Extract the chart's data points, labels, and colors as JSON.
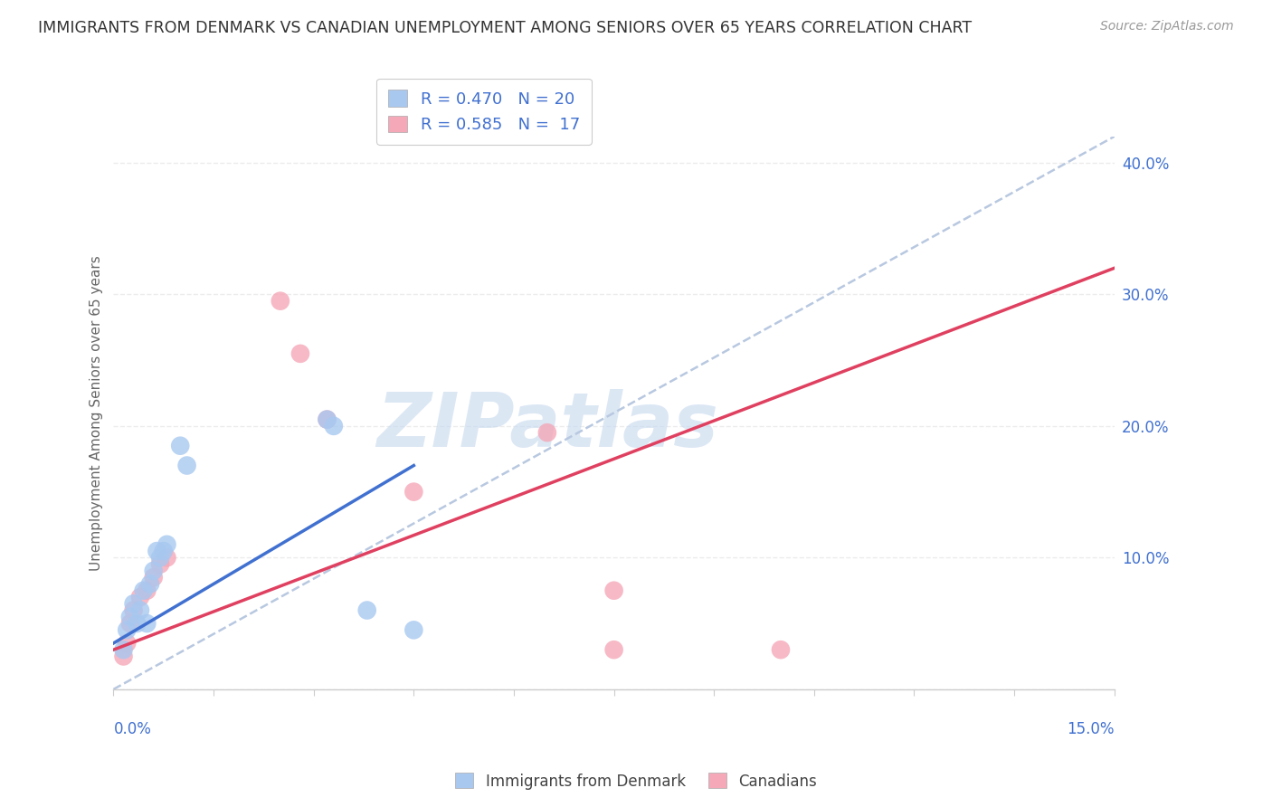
{
  "title": "IMMIGRANTS FROM DENMARK VS CANADIAN UNEMPLOYMENT AMONG SENIORS OVER 65 YEARS CORRELATION CHART",
  "source": "Source: ZipAtlas.com",
  "ylabel": "Unemployment Among Seniors over 65 years",
  "xlim": [
    0,
    15
  ],
  "ylim": [
    0,
    42
  ],
  "legend_entry1": "R = 0.470   N = 20",
  "legend_entry2": "R = 0.585   N =  17",
  "legend_label1": "Immigrants from Denmark",
  "legend_label2": "Canadians",
  "blue_color": "#A8C8F0",
  "pink_color": "#F5A8B8",
  "blue_line_color": "#4070D0",
  "pink_line_color": "#E04060",
  "dash_color": "#B8C8E0",
  "blue_scatter": [
    [
      0.15,
      3.0
    ],
    [
      0.2,
      4.5
    ],
    [
      0.25,
      5.5
    ],
    [
      0.3,
      6.5
    ],
    [
      0.35,
      5.0
    ],
    [
      0.4,
      6.0
    ],
    [
      0.45,
      7.5
    ],
    [
      0.5,
      5.0
    ],
    [
      0.55,
      8.0
    ],
    [
      0.6,
      9.0
    ],
    [
      0.65,
      10.5
    ],
    [
      0.7,
      10.0
    ],
    [
      0.75,
      10.5
    ],
    [
      0.8,
      11.0
    ],
    [
      1.0,
      18.5
    ],
    [
      1.1,
      17.0
    ],
    [
      3.2,
      20.5
    ],
    [
      3.3,
      20.0
    ],
    [
      3.8,
      6.0
    ],
    [
      4.5,
      4.5
    ]
  ],
  "pink_scatter": [
    [
      0.15,
      2.5
    ],
    [
      0.2,
      3.5
    ],
    [
      0.25,
      5.0
    ],
    [
      0.3,
      6.0
    ],
    [
      0.4,
      7.0
    ],
    [
      0.5,
      7.5
    ],
    [
      0.6,
      8.5
    ],
    [
      0.7,
      9.5
    ],
    [
      0.8,
      10.0
    ],
    [
      2.5,
      29.5
    ],
    [
      2.8,
      25.5
    ],
    [
      3.2,
      20.5
    ],
    [
      4.5,
      15.0
    ],
    [
      6.5,
      19.5
    ],
    [
      7.5,
      7.5
    ],
    [
      7.5,
      3.0
    ],
    [
      10.0,
      3.0
    ]
  ],
  "blue_trend_x": [
    0,
    4.5
  ],
  "blue_trend_y": [
    3.5,
    17.0
  ],
  "pink_trend_x": [
    0,
    15
  ],
  "pink_trend_y": [
    3.0,
    32.0
  ],
  "dash_line_x": [
    0,
    15
  ],
  "dash_line_y": [
    0,
    42
  ],
  "watermark": "ZIPatlas",
  "watermark_color": "#C5D8EE",
  "background_color": "#FFFFFF",
  "grid_color": "#E8E8E8"
}
